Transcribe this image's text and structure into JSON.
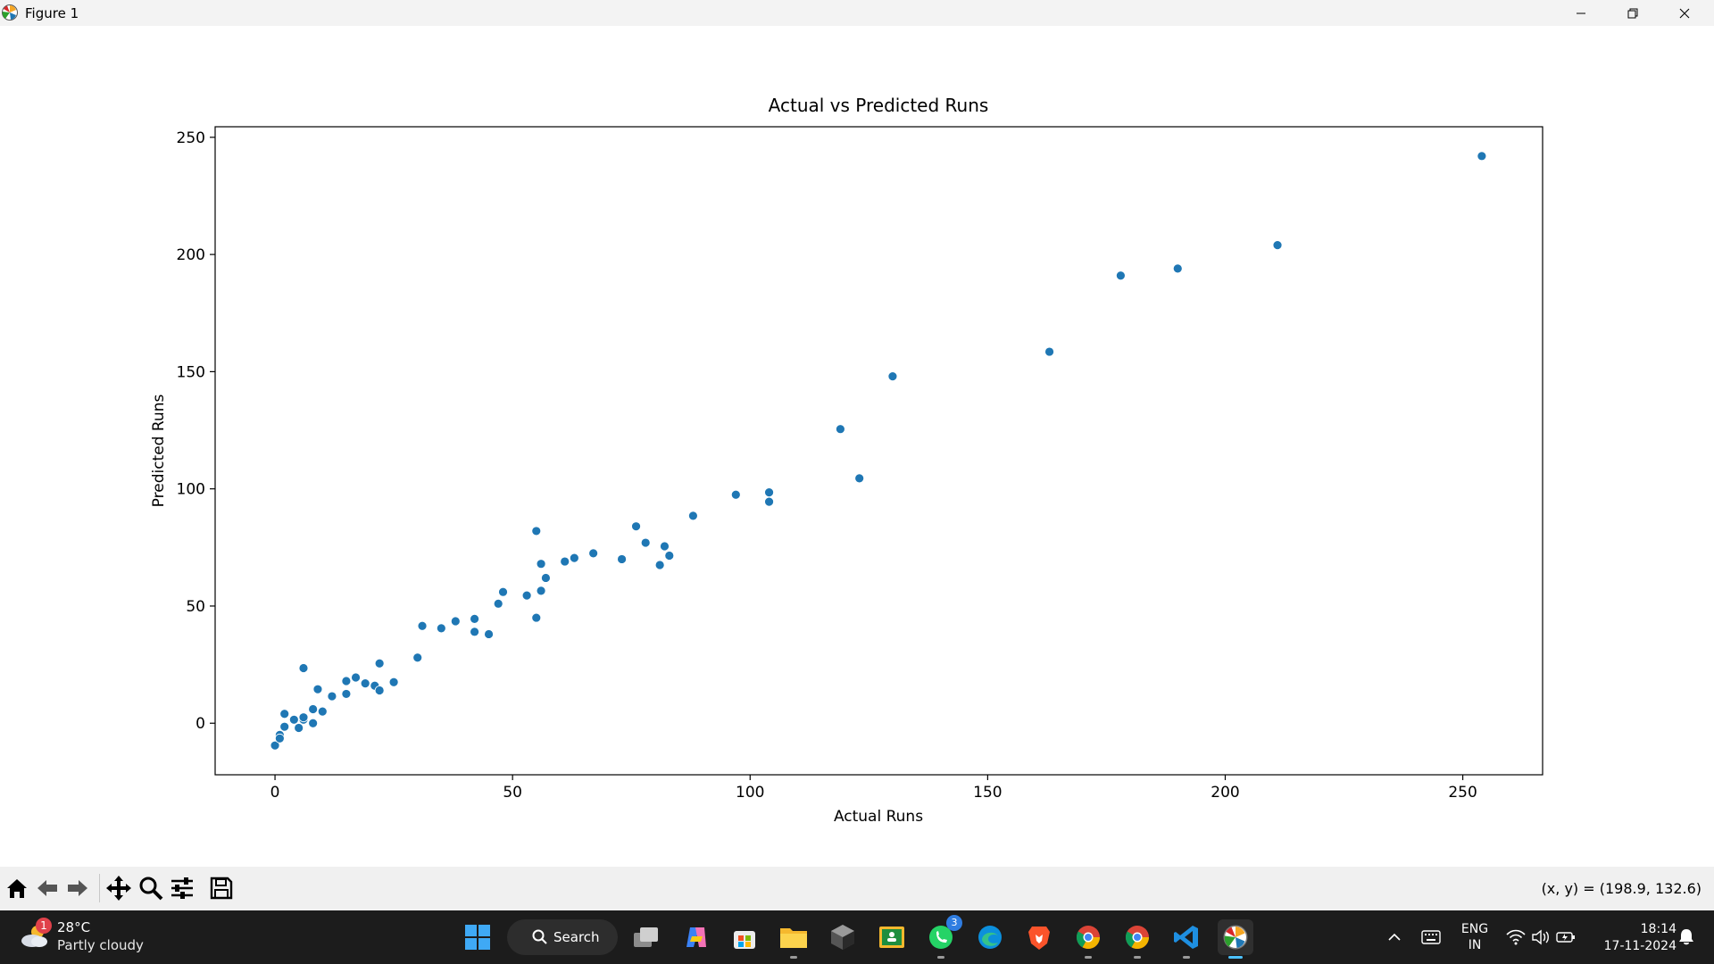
{
  "window": {
    "title": "Figure 1",
    "controls": [
      "minimize",
      "maximize",
      "close"
    ]
  },
  "colors": {
    "marker": "#1f77b4",
    "axes": "#000000",
    "taskbar": "#1c1c1c",
    "accent": "#4cc2ff"
  },
  "chart_data": {
    "type": "scatter",
    "title": "Actual vs Predicted Runs",
    "xlabel": "Actual Runs",
    "ylabel": "Predicted Runs",
    "xlim": [
      -12.6,
      266.8
    ],
    "ylim": [
      -22,
      254.5
    ],
    "xticks": [
      0,
      50,
      100,
      150,
      200,
      250
    ],
    "yticks": [
      0,
      50,
      100,
      150,
      200,
      250
    ],
    "grid": false,
    "points": [
      {
        "x": 0,
        "y": -9.5
      },
      {
        "x": 1,
        "y": -5
      },
      {
        "x": 1,
        "y": -6.5
      },
      {
        "x": 2,
        "y": -1.5
      },
      {
        "x": 2,
        "y": 4
      },
      {
        "x": 4,
        "y": 1.5
      },
      {
        "x": 5,
        "y": -2
      },
      {
        "x": 6,
        "y": 1.5
      },
      {
        "x": 6,
        "y": 2.5
      },
      {
        "x": 6,
        "y": 23.5
      },
      {
        "x": 8,
        "y": 6
      },
      {
        "x": 8,
        "y": 0
      },
      {
        "x": 9,
        "y": 14.5
      },
      {
        "x": 10,
        "y": 5
      },
      {
        "x": 12,
        "y": 11.5
      },
      {
        "x": 15,
        "y": 18
      },
      {
        "x": 15,
        "y": 12.5
      },
      {
        "x": 17,
        "y": 19.5
      },
      {
        "x": 19,
        "y": 17
      },
      {
        "x": 21,
        "y": 16
      },
      {
        "x": 22,
        "y": 14
      },
      {
        "x": 22,
        "y": 25.5
      },
      {
        "x": 25,
        "y": 17.5
      },
      {
        "x": 30,
        "y": 28
      },
      {
        "x": 31,
        "y": 41.5
      },
      {
        "x": 35,
        "y": 40.5
      },
      {
        "x": 38,
        "y": 43.5
      },
      {
        "x": 42,
        "y": 44.5
      },
      {
        "x": 42,
        "y": 39
      },
      {
        "x": 45,
        "y": 38
      },
      {
        "x": 47,
        "y": 51
      },
      {
        "x": 48,
        "y": 56
      },
      {
        "x": 53,
        "y": 54.5
      },
      {
        "x": 55,
        "y": 82
      },
      {
        "x": 55,
        "y": 45
      },
      {
        "x": 56,
        "y": 56.5
      },
      {
        "x": 56,
        "y": 68
      },
      {
        "x": 57,
        "y": 62
      },
      {
        "x": 61,
        "y": 69
      },
      {
        "x": 63,
        "y": 70.5
      },
      {
        "x": 67,
        "y": 72.5
      },
      {
        "x": 73,
        "y": 70
      },
      {
        "x": 76,
        "y": 84
      },
      {
        "x": 78,
        "y": 77
      },
      {
        "x": 81,
        "y": 67.5
      },
      {
        "x": 82,
        "y": 75.5
      },
      {
        "x": 83,
        "y": 71.5
      },
      {
        "x": 88,
        "y": 88.5
      },
      {
        "x": 97,
        "y": 97.5
      },
      {
        "x": 104,
        "y": 98.5
      },
      {
        "x": 104,
        "y": 94.5
      },
      {
        "x": 119,
        "y": 125.5
      },
      {
        "x": 123,
        "y": 104.5
      },
      {
        "x": 130,
        "y": 148
      },
      {
        "x": 163,
        "y": 158.5
      },
      {
        "x": 178,
        "y": 191
      },
      {
        "x": 190,
        "y": 194
      },
      {
        "x": 211,
        "y": 204
      },
      {
        "x": 254,
        "y": 242
      }
    ]
  },
  "toolbar": {
    "buttons": [
      "home-icon",
      "back-arrow-icon",
      "forward-arrow-icon",
      "pan-icon",
      "zoom-icon",
      "configure-subplots-icon",
      "save-icon"
    ],
    "coords": "(x, y) = (198.9, 132.6)"
  },
  "taskbar": {
    "weather": {
      "temp": "28°C",
      "desc": "Partly cloudy",
      "badge": "1"
    },
    "search_label": "Search",
    "whatsapp_badge": "3",
    "lang": {
      "line1": "ENG",
      "line2": "IN"
    },
    "clock": {
      "time": "18:14",
      "date": "17-11-2024"
    }
  }
}
